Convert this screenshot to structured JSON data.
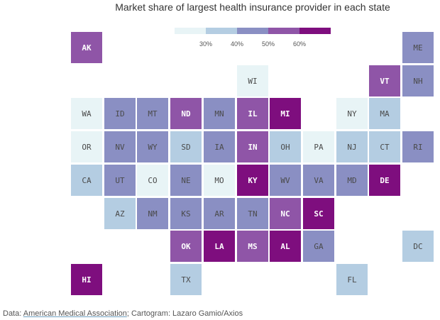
{
  "title": "Market share of largest health insurance provider in each state",
  "legend": {
    "ticks": [
      "30%",
      "40%",
      "50%",
      "60%"
    ],
    "colors": [
      "#e8f4f6",
      "#b4cde2",
      "#8a8fc3",
      "#8f55a7",
      "#7e0e7e"
    ]
  },
  "states": [
    {
      "abbr": "AK",
      "row": 0,
      "col": 0,
      "bin": 3
    },
    {
      "abbr": "ME",
      "row": 0,
      "col": 10,
      "bin": 2
    },
    {
      "abbr": "WI",
      "row": 1,
      "col": 5,
      "bin": 0
    },
    {
      "abbr": "VT",
      "row": 1,
      "col": 9,
      "bin": 3
    },
    {
      "abbr": "NH",
      "row": 1,
      "col": 10,
      "bin": 2
    },
    {
      "abbr": "WA",
      "row": 2,
      "col": 0,
      "bin": 0
    },
    {
      "abbr": "ID",
      "row": 2,
      "col": 1,
      "bin": 2
    },
    {
      "abbr": "MT",
      "row": 2,
      "col": 2,
      "bin": 2
    },
    {
      "abbr": "ND",
      "row": 2,
      "col": 3,
      "bin": 3
    },
    {
      "abbr": "MN",
      "row": 2,
      "col": 4,
      "bin": 2
    },
    {
      "abbr": "IL",
      "row": 2,
      "col": 5,
      "bin": 3
    },
    {
      "abbr": "MI",
      "row": 2,
      "col": 6,
      "bin": 4
    },
    {
      "abbr": "NY",
      "row": 2,
      "col": 8,
      "bin": 0
    },
    {
      "abbr": "MA",
      "row": 2,
      "col": 9,
      "bin": 1
    },
    {
      "abbr": "OR",
      "row": 3,
      "col": 0,
      "bin": 0
    },
    {
      "abbr": "NV",
      "row": 3,
      "col": 1,
      "bin": 2
    },
    {
      "abbr": "WY",
      "row": 3,
      "col": 2,
      "bin": 2
    },
    {
      "abbr": "SD",
      "row": 3,
      "col": 3,
      "bin": 1
    },
    {
      "abbr": "IA",
      "row": 3,
      "col": 4,
      "bin": 2
    },
    {
      "abbr": "IN",
      "row": 3,
      "col": 5,
      "bin": 3
    },
    {
      "abbr": "OH",
      "row": 3,
      "col": 6,
      "bin": 1
    },
    {
      "abbr": "PA",
      "row": 3,
      "col": 7,
      "bin": 0
    },
    {
      "abbr": "NJ",
      "row": 3,
      "col": 8,
      "bin": 1
    },
    {
      "abbr": "CT",
      "row": 3,
      "col": 9,
      "bin": 1
    },
    {
      "abbr": "RI",
      "row": 3,
      "col": 10,
      "bin": 2
    },
    {
      "abbr": "CA",
      "row": 4,
      "col": 0,
      "bin": 1
    },
    {
      "abbr": "UT",
      "row": 4,
      "col": 1,
      "bin": 2
    },
    {
      "abbr": "CO",
      "row": 4,
      "col": 2,
      "bin": 0
    },
    {
      "abbr": "NE",
      "row": 4,
      "col": 3,
      "bin": 2
    },
    {
      "abbr": "MO",
      "row": 4,
      "col": 4,
      "bin": 0
    },
    {
      "abbr": "KY",
      "row": 4,
      "col": 5,
      "bin": 4
    },
    {
      "abbr": "WV",
      "row": 4,
      "col": 6,
      "bin": 2
    },
    {
      "abbr": "VA",
      "row": 4,
      "col": 7,
      "bin": 2
    },
    {
      "abbr": "MD",
      "row": 4,
      "col": 8,
      "bin": 2
    },
    {
      "abbr": "DE",
      "row": 4,
      "col": 9,
      "bin": 4
    },
    {
      "abbr": "AZ",
      "row": 5,
      "col": 1,
      "bin": 1
    },
    {
      "abbr": "NM",
      "row": 5,
      "col": 2,
      "bin": 2
    },
    {
      "abbr": "KS",
      "row": 5,
      "col": 3,
      "bin": 2
    },
    {
      "abbr": "AR",
      "row": 5,
      "col": 4,
      "bin": 2
    },
    {
      "abbr": "TN",
      "row": 5,
      "col": 5,
      "bin": 2
    },
    {
      "abbr": "NC",
      "row": 5,
      "col": 6,
      "bin": 3
    },
    {
      "abbr": "SC",
      "row": 5,
      "col": 7,
      "bin": 4
    },
    {
      "abbr": "OK",
      "row": 6,
      "col": 3,
      "bin": 3
    },
    {
      "abbr": "LA",
      "row": 6,
      "col": 4,
      "bin": 4
    },
    {
      "abbr": "MS",
      "row": 6,
      "col": 5,
      "bin": 3
    },
    {
      "abbr": "AL",
      "row": 6,
      "col": 6,
      "bin": 4
    },
    {
      "abbr": "GA",
      "row": 6,
      "col": 7,
      "bin": 2
    },
    {
      "abbr": "DC",
      "row": 6,
      "col": 10,
      "bin": 1
    },
    {
      "abbr": "HI",
      "row": 7,
      "col": 0,
      "bin": 4
    },
    {
      "abbr": "TX",
      "row": 7,
      "col": 3,
      "bin": 1
    },
    {
      "abbr": "FL",
      "row": 7,
      "col": 8,
      "bin": 1
    }
  ],
  "footer": {
    "prefix": "Data: ",
    "source_link": "American Medical Association",
    "suffix": "; Cartogram: Lazaro Gamio/Axios"
  }
}
